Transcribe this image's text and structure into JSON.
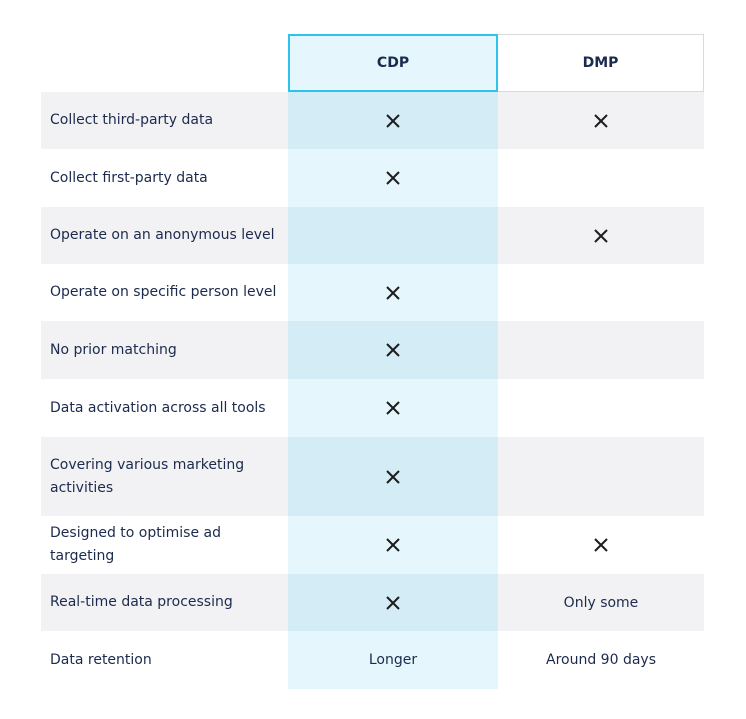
{
  "columns": {
    "cdp": "CDP",
    "dmp": "DMP"
  },
  "rows": [
    {
      "label": "Collect third-party data",
      "cdp_mark": "x",
      "dmp_mark": "x",
      "cdp_text": "",
      "dmp_text": ""
    },
    {
      "label": "Collect first-party data",
      "cdp_mark": "x",
      "dmp_mark": "",
      "cdp_text": "",
      "dmp_text": ""
    },
    {
      "label": "Operate on an anonymous level",
      "cdp_mark": "",
      "dmp_mark": "x",
      "cdp_text": "",
      "dmp_text": ""
    },
    {
      "label": "Operate on specific person level",
      "cdp_mark": "x",
      "dmp_mark": "",
      "cdp_text": "",
      "dmp_text": ""
    },
    {
      "label": "No prior matching",
      "cdp_mark": "x",
      "dmp_mark": "",
      "cdp_text": "",
      "dmp_text": ""
    },
    {
      "label": "Data activation across all tools",
      "cdp_mark": "x",
      "dmp_mark": "",
      "cdp_text": "",
      "dmp_text": ""
    },
    {
      "label": "Covering various marketing activities",
      "cdp_mark": "x",
      "dmp_mark": "",
      "cdp_text": "",
      "dmp_text": ""
    },
    {
      "label": "Designed to optimise ad targeting",
      "cdp_mark": "x",
      "dmp_mark": "x",
      "cdp_text": "",
      "dmp_text": ""
    },
    {
      "label": "Real-time data processing",
      "cdp_mark": "x",
      "dmp_mark": "",
      "cdp_text": "",
      "dmp_text": "Only some"
    },
    {
      "label": "Data retention",
      "cdp_mark": "",
      "dmp_mark": "",
      "cdp_text": "Longer",
      "dmp_text": "Around 90 days"
    }
  ],
  "icons": {
    "mark": "cross-mark-icon"
  },
  "colors": {
    "text": "#1c2a4d",
    "cdp_highlight_border": "#2cc4ec",
    "cdp_light": "#e5f7fd",
    "cdp_shaded": "#d3ecf5",
    "row_shaded": "#f2f2f4"
  }
}
